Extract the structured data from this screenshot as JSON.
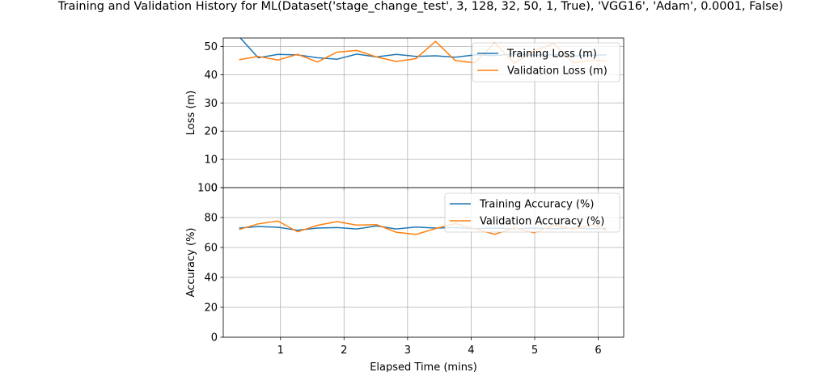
{
  "chart_data": [
    {
      "type": "line",
      "title": "Training and Validation History for ML(Dataset('stage_change_test', 3, 128, 32, 50, 1, True), 'VGG16', 'Adam', 0.0001, False)",
      "xlabel": "",
      "ylabel": "Loss (m)",
      "xlim": [
        0.1,
        6.4
      ],
      "ylim": [
        0,
        53
      ],
      "xticks": [
        1,
        2,
        3,
        4,
        5,
        6
      ],
      "yticks": [
        0,
        10,
        20,
        30,
        40,
        50
      ],
      "grid": true,
      "legend": "upper right",
      "x": [
        0.35,
        0.65,
        0.96,
        1.27,
        1.58,
        1.89,
        2.2,
        2.51,
        2.82,
        3.13,
        3.44,
        3.75,
        4.06,
        4.37,
        4.68,
        4.99,
        5.3,
        5.61,
        5.92,
        6.13
      ],
      "series": [
        {
          "name": "Training Loss (m)",
          "color": "#1f77b4",
          "values": [
            53.5,
            46.0,
            47.2,
            47.0,
            46.0,
            45.5,
            47.3,
            46.3,
            47.2,
            46.5,
            46.7,
            46.2,
            47.0,
            46.8,
            47.3,
            46.9,
            47.1,
            46.6,
            46.9,
            47.0
          ]
        },
        {
          "name": "Validation Loss (m)",
          "color": "#ff7f0e",
          "values": [
            45.3,
            46.5,
            45.2,
            47.2,
            44.5,
            48.0,
            48.6,
            46.3,
            44.7,
            45.7,
            51.8,
            45.0,
            44.2,
            51.3,
            44.0,
            48.5,
            51.0,
            44.2,
            45.2,
            44.8
          ]
        }
      ]
    },
    {
      "type": "line",
      "title": "",
      "xlabel": "Elapsed Time (mins)",
      "ylabel": "Accuracy (%)",
      "xlim": [
        0.1,
        6.4
      ],
      "ylim": [
        0,
        100
      ],
      "xticks": [
        1,
        2,
        3,
        4,
        5,
        6
      ],
      "yticks": [
        0,
        20,
        40,
        60,
        80,
        100
      ],
      "grid": true,
      "legend": "upper right",
      "x": [
        0.35,
        0.65,
        0.96,
        1.27,
        1.58,
        1.89,
        2.2,
        2.51,
        2.82,
        3.13,
        3.44,
        3.75,
        4.06,
        4.37,
        4.68,
        4.99,
        5.3,
        5.61,
        5.92,
        6.13
      ],
      "series": [
        {
          "name": "Training Accuracy (%)",
          "color": "#1f77b4",
          "values": [
            73.0,
            74.0,
            73.5,
            71.5,
            73.0,
            73.3,
            72.4,
            74.4,
            72.4,
            73.6,
            73.0,
            73.3,
            72.6,
            73.0,
            72.5,
            73.0,
            72.6,
            72.9,
            72.6,
            72.7
          ]
        },
        {
          "name": "Validation Accuracy (%)",
          "color": "#ff7f0e",
          "values": [
            72.0,
            75.8,
            77.6,
            70.5,
            74.8,
            77.3,
            74.9,
            75.3,
            70.2,
            68.7,
            72.6,
            76.0,
            72.5,
            68.8,
            73.1,
            69.8,
            74.8,
            72.3,
            75.3,
            71.0
          ]
        }
      ]
    }
  ]
}
